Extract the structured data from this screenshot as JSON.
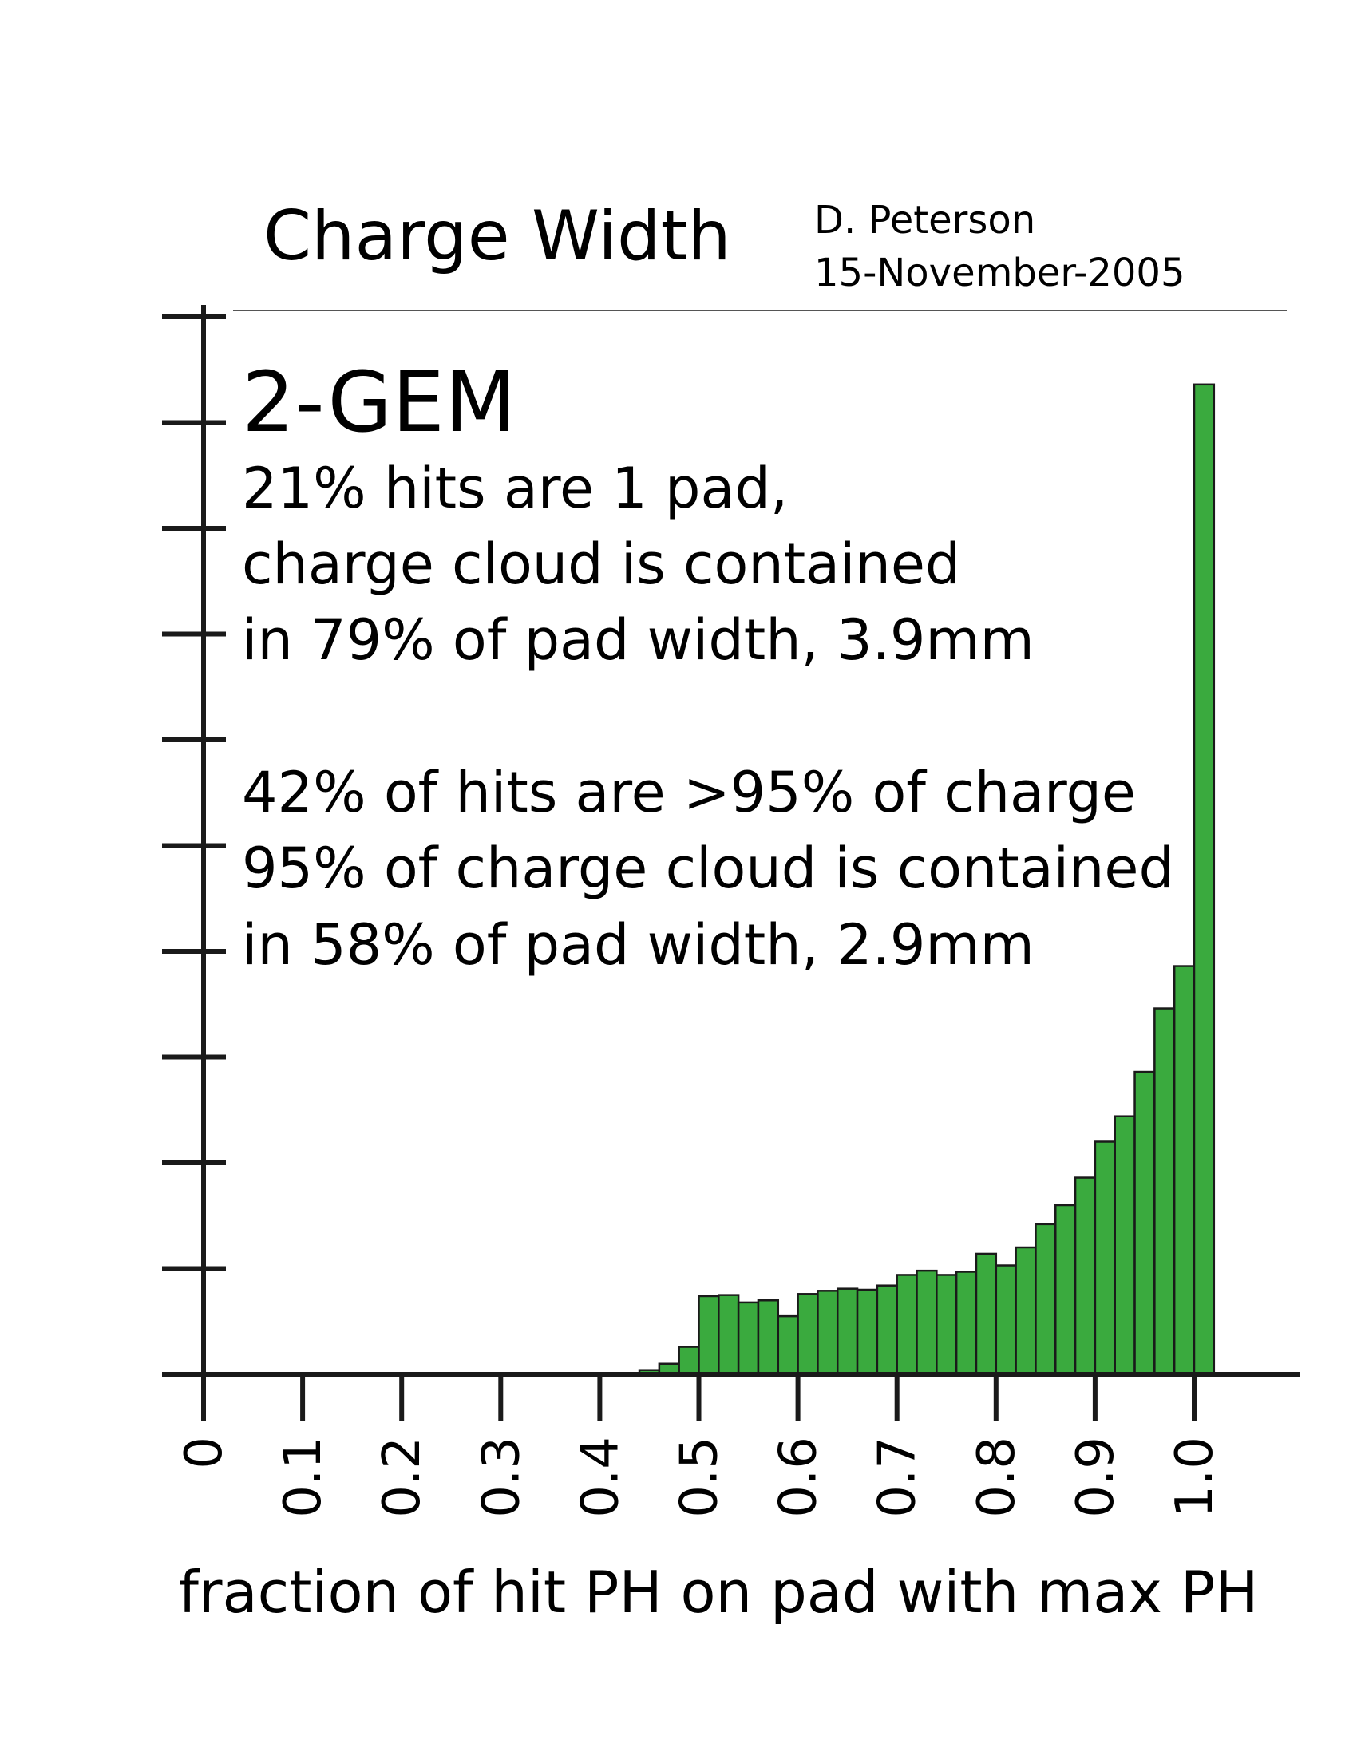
{
  "header": {
    "title": "Charge Width",
    "author": "D. Peterson",
    "date": "15-November-2005"
  },
  "annotation": {
    "heading": "2-GEM",
    "lines": [
      "21% hits are 1 pad,",
      "charge cloud is contained",
      "in 79% of pad width,  3.9mm",
      "",
      "42% of hits are >95% of charge",
      "95% of charge cloud is contained",
      "in 58% of pad width,   2.9mm"
    ]
  },
  "chart_data": {
    "type": "bar",
    "xlabel": "fraction of hit PH on pad with max PH",
    "ylabel": "",
    "xlim": [
      0,
      1.1
    ],
    "ylim": [
      0,
      10
    ],
    "x_ticks": [
      "0",
      "0.1",
      "0.2",
      "0.3",
      "0.4",
      "0.5",
      "0.6",
      "0.7",
      "0.8",
      "0.9",
      "1.0"
    ],
    "y_tick_count": 10,
    "bin_width": 0.02,
    "series": [
      {
        "color": "#3aaa3e",
        "bins": [
          {
            "x": 0.44,
            "y": 0.04
          },
          {
            "x": 0.46,
            "y": 0.1
          },
          {
            "x": 0.48,
            "y": 0.26
          },
          {
            "x": 0.5,
            "y": 0.74
          },
          {
            "x": 0.52,
            "y": 0.75
          },
          {
            "x": 0.54,
            "y": 0.68
          },
          {
            "x": 0.56,
            "y": 0.7
          },
          {
            "x": 0.58,
            "y": 0.55
          },
          {
            "x": 0.6,
            "y": 0.76
          },
          {
            "x": 0.62,
            "y": 0.79
          },
          {
            "x": 0.64,
            "y": 0.81
          },
          {
            "x": 0.66,
            "y": 0.8
          },
          {
            "x": 0.68,
            "y": 0.84
          },
          {
            "x": 0.7,
            "y": 0.94
          },
          {
            "x": 0.72,
            "y": 0.98
          },
          {
            "x": 0.74,
            "y": 0.94
          },
          {
            "x": 0.76,
            "y": 0.97
          },
          {
            "x": 0.78,
            "y": 1.14
          },
          {
            "x": 0.8,
            "y": 1.03
          },
          {
            "x": 0.82,
            "y": 1.2
          },
          {
            "x": 0.84,
            "y": 1.42
          },
          {
            "x": 0.86,
            "y": 1.6
          },
          {
            "x": 0.88,
            "y": 1.86
          },
          {
            "x": 0.9,
            "y": 2.2
          },
          {
            "x": 0.92,
            "y": 2.44
          },
          {
            "x": 0.94,
            "y": 2.86
          },
          {
            "x": 0.96,
            "y": 3.46
          },
          {
            "x": 0.98,
            "y": 3.86
          },
          {
            "x": 1.0,
            "y": 9.36
          }
        ]
      }
    ]
  }
}
